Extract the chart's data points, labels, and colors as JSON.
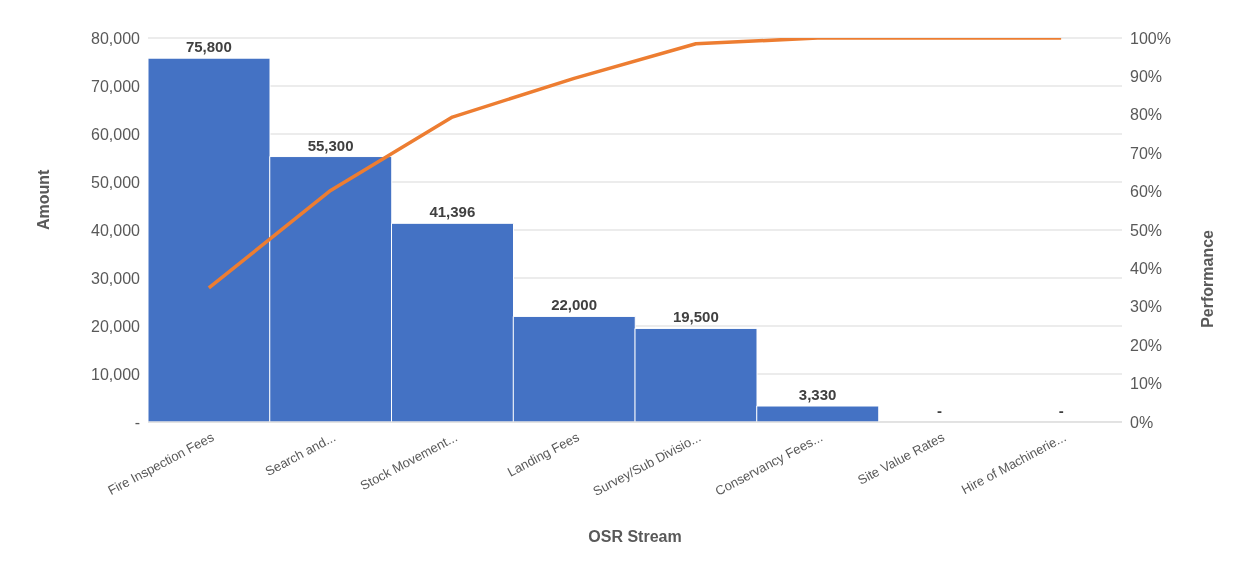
{
  "chart_data": {
    "type": "bar",
    "xlabel": "OSR Stream",
    "ylabel": "Amount",
    "y2label": "Performance",
    "categories": [
      "Fire Inspection Fees",
      "Search and...",
      "Stock Movement...",
      "Landing Fees",
      "Survey/Sub Divisio...",
      "Conservancy Fees...",
      "Site Value Rates",
      "Hire of Machinerie..."
    ],
    "series": [
      {
        "color": "#4472c4",
        "values": [
          75800,
          55300,
          41396,
          22000,
          19500,
          3330,
          0,
          0
        ],
        "value_labels": [
          "75,800",
          "55,300",
          "41,396",
          "22,000",
          "19,500",
          "3,330",
          "-",
          "-"
        ]
      },
      {
        "type": "line",
        "axis": "y2",
        "color": "#ed7d31",
        "values": [
          34.9,
          60.3,
          79.4,
          89.5,
          98.5,
          100,
          100,
          100
        ]
      }
    ],
    "ylim": [
      0,
      80000
    ],
    "yticks": [
      {
        "value": 0,
        "label": "-"
      },
      {
        "value": 10000,
        "label": "10,000"
      },
      {
        "value": 20000,
        "label": "20,000"
      },
      {
        "value": 30000,
        "label": "30,000"
      },
      {
        "value": 40000,
        "label": "40,000"
      },
      {
        "value": 50000,
        "label": "50,000"
      },
      {
        "value": 60000,
        "label": "60,000"
      },
      {
        "value": 70000,
        "label": "70,000"
      },
      {
        "value": 80000,
        "label": "80,000"
      }
    ],
    "y2lim": [
      0,
      100
    ],
    "y2ticks": [
      {
        "value": 0,
        "label": "0%"
      },
      {
        "value": 10,
        "label": "10%"
      },
      {
        "value": 20,
        "label": "20%"
      },
      {
        "value": 30,
        "label": "30%"
      },
      {
        "value": 40,
        "label": "40%"
      },
      {
        "value": 50,
        "label": "50%"
      },
      {
        "value": 60,
        "label": "60%"
      },
      {
        "value": 70,
        "label": "70%"
      },
      {
        "value": 80,
        "label": "80%"
      },
      {
        "value": 90,
        "label": "90%"
      },
      {
        "value": 100,
        "label": "100%"
      }
    ],
    "grid": "y",
    "marker": "none",
    "line_style": "solid"
  }
}
